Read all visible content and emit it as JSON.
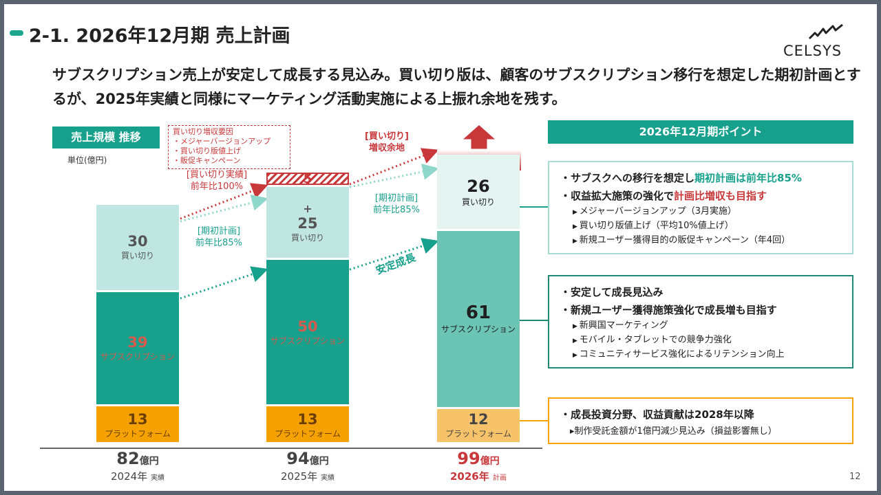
{
  "header": {
    "title": "2-1. 2026年12月期 売上計画",
    "logo": "CELSYS",
    "lead": "サブスクリプション売上が安定して成長する見込み。買い切り版は、顧客のサブスクリプション移行を想定した期初計画とするが、2025年実績と同様にマーケティング活動実施による上振れ余地を残す。"
  },
  "chart_panel": {
    "title": "売上規模 推移",
    "unit": "単位(億円)",
    "callout_lines": [
      "買い切り増収要因",
      "・メジャーバージョンアップ",
      "・買い切り版値上げ",
      "・販促キャンペーン"
    ],
    "anno_actual": [
      "[買い切り実績]",
      "前年比100%"
    ],
    "anno_plan_2025": [
      "[期初計画]",
      "前年比85%"
    ],
    "anno_upside": [
      "[買い切り]",
      "増収余地"
    ],
    "anno_plan_2026": [
      "[期初計画]",
      "前年比85%"
    ],
    "anno_growth": "安定成長",
    "plus": "+"
  },
  "chart_data": {
    "type": "bar",
    "stacked": true,
    "categories": [
      "2024年",
      "2025年",
      "2026年"
    ],
    "category_kinds": [
      "実績",
      "実績",
      "計画"
    ],
    "series": [
      {
        "name": "プラットフォーム",
        "values": [
          13,
          13,
          12
        ],
        "color": "#f5a100"
      },
      {
        "name": "サブスクリプション",
        "values": [
          39,
          50,
          61
        ],
        "color": "#17a08c"
      },
      {
        "name": "買い切り",
        "values": [
          30,
          25,
          26
        ],
        "color": "#bfe6e0"
      },
      {
        "name": "",
        "values": [
          0,
          5,
          0
        ],
        "color": "#c8373a"
      }
    ],
    "totals": [
      "82",
      "94",
      "99"
    ],
    "total_unit": "億円"
  },
  "points": {
    "title": "2026年12月期ポイント",
    "box1": {
      "b1_pre": "・サブスクへの移行を想定し",
      "b1_hl": "期初計画は前年比85%",
      "b2_pre": "・収益拡大施策の強化で",
      "b2_hl": "計画比増収も目指す",
      "subs": [
        "メジャーバージョンアップ（3月実施）",
        "買い切り版値上げ（平均10%値上げ）",
        "新規ユーザー獲得目的の販促キャンペーン（年4回）"
      ]
    },
    "box2": {
      "b1": "・安定して成長見込み",
      "b2": "・新規ユーザー獲得施策強化で成長増も目指す",
      "subs": [
        "新興国マーケティング",
        "モバイル・タブレットでの競争力強化",
        "コミュニティサービス強化によるリテンション向上"
      ]
    },
    "box3": {
      "b1": "・成長投資分野、収益貢献は2028年以降",
      "sub": "▸制作受託金額が1億円減少見込み（損益影響無し）"
    }
  },
  "page_number": "12"
}
